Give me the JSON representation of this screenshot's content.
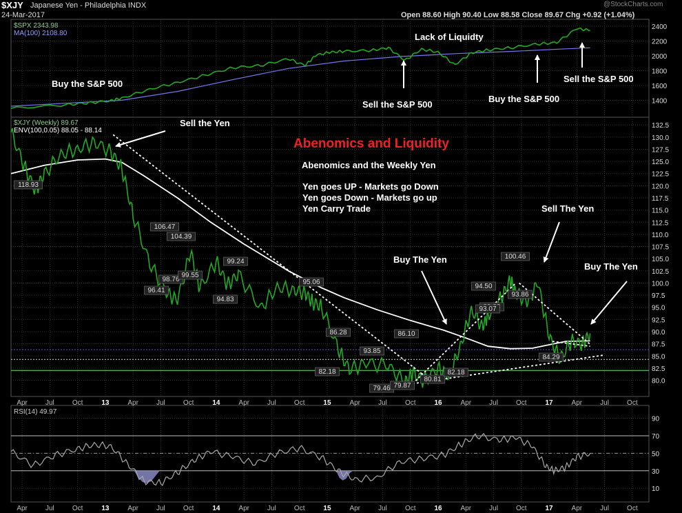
{
  "header": {
    "symbol": "$XJY",
    "description": "Japanese Yen - Philadelphia INDX",
    "date": "24-Mar-2017",
    "ohlc": "Open 88.60  High 90.40  Low 88.58  Close 89.67  Chg +0.92 (+1.04%)",
    "watermark": "@StockCharts.com"
  },
  "chart_data": [
    {
      "type": "line",
      "panel": "SPX",
      "legend": [
        "$SPX 2343.98",
        "MA(100) 2108.80"
      ],
      "ylim": [
        1200,
        2500
      ],
      "y_ticks": [
        1400,
        1600,
        1800,
        2000,
        2200,
        2400
      ],
      "series": [
        {
          "name": "$SPX",
          "color": "#22aa22",
          "x": [
            0.0,
            0.5,
            0.7,
            0.9,
            1.0,
            1.25,
            1.5,
            1.75,
            2.0,
            2.25,
            2.5,
            2.65,
            2.75,
            2.88,
            3.0,
            3.25,
            3.4,
            3.55,
            3.7,
            3.85,
            4.0,
            4.15,
            4.3,
            4.5,
            4.75,
            4.92,
            5.1,
            5.22
          ],
          "values": [
            1290,
            1340,
            1365,
            1395,
            1430,
            1550,
            1640,
            1740,
            1840,
            1870,
            1960,
            1870,
            2010,
            2050,
            2060,
            2075,
            2110,
            1940,
            2090,
            2050,
            1880,
            2040,
            2080,
            2110,
            2160,
            2180,
            2370,
            2344
          ]
        },
        {
          "name": "MA(100)",
          "color": "#7777ee",
          "x": [
            0.0,
            0.5,
            1.0,
            1.5,
            2.0,
            2.5,
            3.0,
            3.5,
            4.0,
            4.5,
            5.0,
            5.22
          ],
          "values": [
            1320,
            1360,
            1400,
            1520,
            1680,
            1830,
            1930,
            1990,
            2030,
            2060,
            2095,
            2109
          ]
        }
      ]
    },
    {
      "type": "line",
      "panel": "XJY",
      "legend": [
        "$XJY (Weekly) 89.67",
        "ENV(100,0.05) 88.05 - 88.14"
      ],
      "ylim": [
        77.5,
        133.5
      ],
      "y_ticks": [
        "80.0",
        "82.5",
        "85.0",
        "87.5",
        "90.0",
        "92.5",
        "95.0",
        "97.5",
        "100.0",
        "102.5",
        "105.0",
        "107.5",
        "110.0",
        "112.5",
        "115.0",
        "117.5",
        "120.0",
        "122.5",
        "125.0",
        "127.5",
        "130.0",
        "132.5"
      ],
      "series": [
        {
          "name": "$XJY",
          "color": "#22aa22",
          "x": [
            0.0,
            0.12,
            0.22,
            0.3,
            0.45,
            0.6,
            0.75,
            0.9,
            1.0,
            1.1,
            1.25,
            1.4,
            1.5,
            1.62,
            1.7,
            1.85,
            1.95,
            2.05,
            2.25,
            2.4,
            2.55,
            2.65,
            2.72,
            2.8,
            2.95,
            3.05,
            3.2,
            3.4,
            3.55,
            3.62,
            3.72,
            3.85,
            3.95,
            4.05,
            4.15,
            4.25,
            4.3,
            4.42,
            4.5,
            4.55,
            4.65,
            4.75,
            4.85,
            4.95,
            5.05,
            5.15,
            5.22
          ],
          "values": [
            131.0,
            124.0,
            119.0,
            122.5,
            126.5,
            127.5,
            129.0,
            127.0,
            123.5,
            114.0,
            104.0,
            98.0,
            96.4,
            106.5,
            98.8,
            104.4,
            99.6,
            101.8,
            94.8,
            99.2,
            98.5,
            98.0,
            96.0,
            95.1,
            86.3,
            82.2,
            83.5,
            83.0,
            79.5,
            81.5,
            79.9,
            82.5,
            80.8,
            87.0,
            94.5,
            91.0,
            93.5,
            97.0,
            100.5,
            98.0,
            96.0,
            100.0,
            89.0,
            84.3,
            88.0,
            87.5,
            89.67
          ]
        },
        {
          "name": "ENV(100,0.05)",
          "color": "#ffffff",
          "x": [
            0.0,
            0.3,
            0.6,
            0.85,
            1.0,
            1.2,
            1.5,
            1.8,
            2.1,
            2.5,
            2.8,
            3.0,
            3.3,
            3.6,
            3.9,
            4.1,
            4.3,
            4.5,
            4.7,
            4.85,
            5.0,
            5.22
          ],
          "values": [
            122.5,
            124.2,
            125.3,
            125.5,
            124.8,
            122.0,
            117.5,
            112.5,
            108.0,
            102.5,
            99.0,
            97.0,
            94.5,
            92.3,
            90.3,
            88.7,
            87.0,
            86.5,
            86.6,
            87.3,
            88.0,
            88.1
          ]
        }
      ]
    },
    {
      "type": "line",
      "panel": "RSI",
      "legend": [
        "RSI(14) 49.97"
      ],
      "ylim": [
        0,
        100
      ],
      "y_ticks": [
        10,
        30,
        50,
        70,
        90
      ],
      "series": [
        {
          "name": "RSI(14)",
          "color": "#aaaaaa",
          "x": [
            0.0,
            0.2,
            0.4,
            0.6,
            0.75,
            0.9,
            1.05,
            1.2,
            1.35,
            1.5,
            1.65,
            1.8,
            2.0,
            2.2,
            2.4,
            2.6,
            2.8,
            2.95,
            3.1,
            3.3,
            3.5,
            3.7,
            3.9,
            4.05,
            4.2,
            4.4,
            4.55,
            4.7,
            4.82,
            4.9,
            5.0,
            5.1,
            5.22
          ],
          "values": [
            52,
            36,
            48,
            55,
            60,
            58,
            38,
            18,
            16,
            28,
            42,
            52,
            46,
            38,
            50,
            56,
            45,
            30,
            20,
            22,
            40,
            44,
            48,
            60,
            70,
            65,
            68,
            58,
            35,
            30,
            34,
            46,
            50
          ]
        }
      ]
    }
  ],
  "x_axis_labels": [
    "Apr",
    "Jul",
    "Oct",
    "13",
    "Apr",
    "Jul",
    "Oct",
    "14",
    "Apr",
    "Jul",
    "Oct",
    "15",
    "Apr",
    "Jul",
    "Oct",
    "16",
    "Apr",
    "Jul",
    "Oct",
    "17",
    "Apr",
    "Jul",
    "Oct"
  ],
  "spx_annotations": [
    "Buy the S&P 500",
    "Lack of Liquidty",
    "Sell the S&P 500",
    "Buy the S&P 500",
    "Sell the S&P 500"
  ],
  "xjy_annotations": {
    "title": "Abenomics and Liquidity",
    "subtitle": "Abenomics and the Weekly Yen",
    "lines": [
      "Yen goes UP - Markets go Down",
      "Yen goes Down - Markets go up",
      "Yen Carry Trade"
    ],
    "sell_yen_1": "Sell the Yen",
    "buy_yen_1": "Buy The Yen",
    "sell_yen_2": "Sell The Yen",
    "buy_yen_2": "Buy The Yen"
  },
  "price_labels": [
    "118.93",
    "106.47",
    "104.39",
    "98.76",
    "99.55",
    "96.41",
    "99.24",
    "94.83",
    "95.06",
    "86.28",
    "82.18",
    "93.85",
    "86.10",
    "79.46",
    "79.87",
    "80.81",
    "82.18",
    "94.50",
    "89.88",
    "100.46",
    "93.07",
    "93.86",
    "84.29"
  ],
  "colors": {
    "price": "#22aa22",
    "ma": "#7777ee",
    "title_red": "#ee2222",
    "grid": "#333333"
  }
}
